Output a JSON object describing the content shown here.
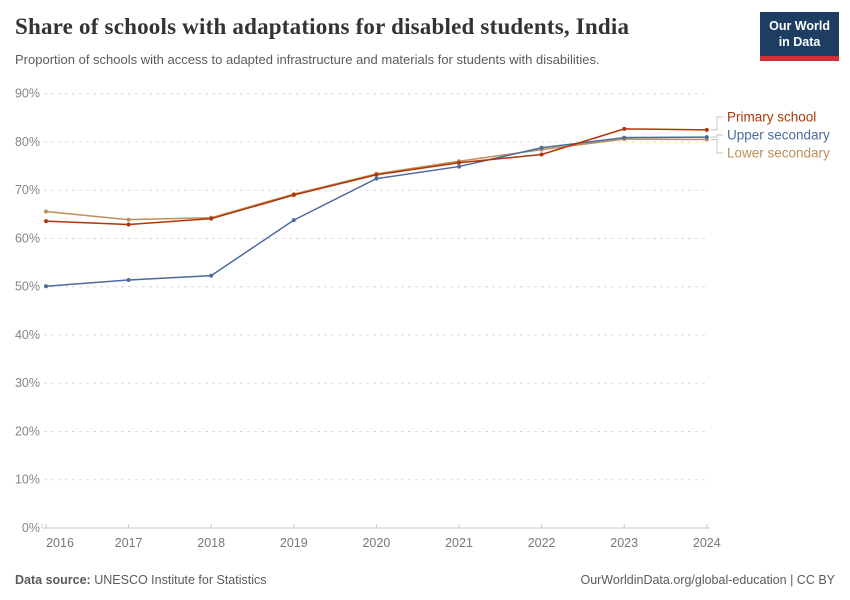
{
  "logo": {
    "line1": "Our World",
    "line2": "in Data"
  },
  "chart_data": {
    "type": "line",
    "title": "Share of schools with adaptations for disabled students, India",
    "subtitle": "Proportion of schools with access to adapted infrastructure and materials for students with disabilities.",
    "x": [
      2016,
      2017,
      2018,
      2019,
      2020,
      2021,
      2022,
      2023,
      2024
    ],
    "series": [
      {
        "name": "Primary school",
        "color": "#B13507",
        "values": [
          63.6,
          62.9,
          64.1,
          69.0,
          73.2,
          75.7,
          77.4,
          82.7,
          82.5
        ]
      },
      {
        "name": "Upper secondary",
        "color": "#4C6A9C",
        "values": [
          50.1,
          51.4,
          52.3,
          63.8,
          72.4,
          74.9,
          78.8,
          80.9,
          81.0
        ]
      },
      {
        "name": "Lower secondary",
        "color": "#BC8E5A",
        "values": [
          65.6,
          63.9,
          64.3,
          69.2,
          73.4,
          76.0,
          78.4,
          80.6,
          80.5
        ]
      }
    ],
    "ylim": [
      0,
      90
    ],
    "ytick_values": [
      0,
      10,
      20,
      30,
      40,
      50,
      60,
      70,
      80,
      90
    ],
    "ytick_suffix": "%",
    "grid": "horizontal-dashed",
    "legend_position": "right-of-lines",
    "legend_entries": [
      "Primary school",
      "Upper secondary",
      "Lower secondary"
    ]
  },
  "footer": {
    "source_label": "Data source:",
    "source_value": "UNESCO Institute for Statistics",
    "credit": "OurWorldinData.org/global-education | CC BY"
  }
}
